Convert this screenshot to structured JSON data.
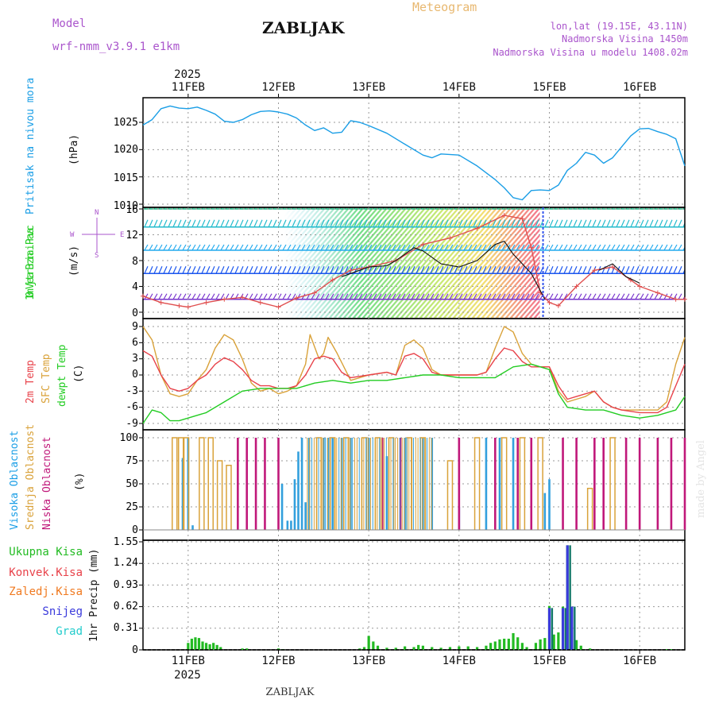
{
  "header": {
    "model_label": "Model",
    "model_name": "wrf-nmm_v3.9.1 e1km",
    "station": "ZABLJAK",
    "meteogram": "Meteogram",
    "lonlat": "lon,lat (19.15E, 43.11N)",
    "elevation": "Nadmorska Visina 1450m",
    "model_elevation": "Nadmorska Visina u modelu 1408.02m",
    "watermark": "made by Angel",
    "footer_station": "ZABLJAK"
  },
  "time_axis": {
    "year": "2025",
    "start_day": 10.5,
    "end_day": 16.5,
    "days": [
      {
        "label": "11FEB",
        "day": 11
      },
      {
        "label": "12FEB",
        "day": 12
      },
      {
        "label": "13FEB",
        "day": 13
      },
      {
        "label": "14FEB",
        "day": 14
      },
      {
        "label": "15FEB",
        "day": 15
      },
      {
        "label": "16FEB",
        "day": 16
      }
    ]
  },
  "colors": {
    "pressure": "#1a9ee6",
    "temp_2m": "#e8424a",
    "temp_sfc": "#d9a23a",
    "dewpoint": "#22cc22",
    "cloud_high": "#33a0dd",
    "cloud_mid": "#d9a23a",
    "cloud_low": "#c0187a",
    "precip_total": "#22bb22",
    "precip_conv": "#e8424a",
    "precip_frz": "#f07a20",
    "precip_snow": "#3a3adc",
    "precip_grad": "#22cccc",
    "wind_gust": "#e05050",
    "wind_speed": "#111111",
    "wind_label": "#aa55cc"
  },
  "chart_data": [
    {
      "type": "line",
      "panel": "pressure",
      "ylabel": "Pritisak na nivou mora",
      "unit": "(hPa)",
      "ylim": [
        1010,
        1029
      ],
      "yticks": [
        1010,
        1015,
        1020,
        1025
      ],
      "grid": true,
      "series": [
        {
          "x": [
            10.5,
            10.6,
            10.7,
            10.8,
            10.9,
            11.0,
            11.1,
            11.2,
            11.3,
            11.4,
            11.5,
            11.6,
            11.7,
            11.8,
            11.9,
            12.0,
            12.1,
            12.2,
            12.3,
            12.4,
            12.5,
            12.6,
            12.7,
            12.8,
            12.9,
            13.0,
            13.2,
            13.4,
            13.6,
            13.7,
            13.8,
            14.0,
            14.2,
            14.4,
            14.5,
            14.6,
            14.7,
            14.8,
            14.9,
            15.0,
            15.1,
            15.2,
            15.3,
            15.4,
            15.5,
            15.6,
            15.7,
            15.8,
            15.9,
            16.0,
            16.1,
            16.2,
            16.3,
            16.4,
            16.5
          ],
          "values": [
            1024.5,
            1025.5,
            1027.5,
            1028.0,
            1027.6,
            1027.5,
            1027.8,
            1027.2,
            1026.5,
            1025.2,
            1025.0,
            1025.5,
            1026.4,
            1027.0,
            1027.1,
            1026.9,
            1026.5,
            1025.8,
            1024.5,
            1023.5,
            1024.0,
            1023.0,
            1023.2,
            1025.3,
            1025.0,
            1024.4,
            1023.0,
            1021.0,
            1019.0,
            1018.5,
            1019.2,
            1019.0,
            1017.0,
            1014.5,
            1013.0,
            1011.2,
            1010.8,
            1012.5,
            1012.6,
            1012.5,
            1013.5,
            1016.2,
            1017.5,
            1019.5,
            1019.0,
            1017.5,
            1018.5,
            1020.5,
            1022.5,
            1023.8,
            1023.9,
            1023.3,
            1022.8,
            1022.0,
            1017.0
          ]
        }
      ]
    },
    {
      "type": "line",
      "panel": "wind",
      "ylabel": "10m Vjetar Brzina i Pravac",
      "unit": "(m/s)",
      "ylim": [
        -1,
        16
      ],
      "yticks": [
        0,
        4,
        8,
        12,
        16
      ],
      "grid": true,
      "direction_legend": [
        "S",
        "W",
        "N",
        "E"
      ],
      "direction_bands": [
        2,
        6,
        9.6,
        13.2,
        16
      ],
      "series": [
        {
          "name": "gust",
          "x": [
            10.5,
            10.7,
            10.9,
            11.0,
            11.2,
            11.4,
            11.6,
            11.8,
            12.0,
            12.2,
            12.4,
            12.6,
            12.8,
            13.0,
            13.3,
            13.6,
            13.9,
            14.2,
            14.5,
            14.7,
            14.8,
            14.9,
            15.0,
            15.1,
            15.3,
            15.5,
            15.7,
            15.9,
            16.0,
            16.2,
            16.4,
            16.5
          ],
          "values": [
            2.5,
            1.5,
            1.0,
            0.8,
            1.5,
            2.0,
            2.3,
            1.5,
            0.8,
            2.2,
            3.0,
            5.0,
            6.5,
            7.0,
            8.0,
            10.5,
            11.5,
            13.0,
            15.0,
            14.5,
            10.0,
            3.0,
            1.5,
            1.0,
            4.0,
            6.5,
            7.0,
            5.0,
            4.0,
            3.0,
            2.0,
            2.0
          ]
        },
        {
          "name": "speed",
          "x": [
            12.7,
            12.9,
            13.0,
            13.2,
            13.3,
            13.5,
            13.6,
            13.8,
            14.0,
            14.2,
            14.4,
            14.5,
            14.6,
            14.8,
            14.95
          ],
          "values": [
            5.5,
            6.5,
            7.0,
            7.2,
            8.0,
            10.0,
            9.5,
            7.5,
            7.0,
            8.0,
            10.5,
            11.0,
            9.0,
            6.0,
            2.0
          ]
        },
        {
          "name": "speed2",
          "x": [
            15.55,
            15.7,
            15.85,
            16.0
          ],
          "values": [
            6.5,
            7.5,
            5.5,
            4.5
          ]
        }
      ]
    },
    {
      "type": "line",
      "panel": "temperature",
      "ylabel": [
        "2m Temp",
        "SFC Temp",
        "dewpt Temp"
      ],
      "unit": "(C)",
      "ylim": [
        -10,
        10
      ],
      "yticks": [
        -9,
        -6,
        -3,
        0,
        3,
        6,
        9
      ],
      "grid": true,
      "series": [
        {
          "name": "2m Temp",
          "x": [
            10.5,
            10.6,
            10.7,
            10.8,
            10.9,
            11.0,
            11.1,
            11.2,
            11.3,
            11.4,
            11.5,
            11.6,
            11.7,
            11.8,
            11.9,
            12.0,
            12.1,
            12.2,
            12.3,
            12.4,
            12.5,
            12.6,
            12.7,
            12.8,
            13.0,
            13.2,
            13.3,
            13.4,
            13.5,
            13.6,
            13.7,
            13.8,
            14.0,
            14.2,
            14.3,
            14.4,
            14.5,
            14.6,
            14.7,
            14.8,
            14.9,
            15.0,
            15.1,
            15.2,
            15.3,
            15.4,
            15.5,
            15.6,
            15.7,
            15.8,
            16.0,
            16.2,
            16.3,
            16.4,
            16.5
          ],
          "values": [
            4.5,
            3.5,
            0.0,
            -2.5,
            -3.0,
            -2.5,
            -1.0,
            0.0,
            2.0,
            3.2,
            2.5,
            1.0,
            -1.0,
            -2.0,
            -2.0,
            -2.5,
            -2.5,
            -2.0,
            0.0,
            3.0,
            3.5,
            3.0,
            0.5,
            -0.5,
            0.0,
            0.5,
            0.0,
            3.5,
            4.0,
            3.0,
            0.5,
            0.0,
            0.0,
            0.0,
            0.5,
            3.0,
            5.0,
            4.5,
            2.5,
            1.5,
            1.5,
            1.5,
            -2.0,
            -4.5,
            -4.0,
            -3.5,
            -3.0,
            -5.0,
            -6.0,
            -6.5,
            -7.0,
            -7.0,
            -6.0,
            -2.0,
            2.0
          ]
        },
        {
          "name": "SFC Temp",
          "x": [
            10.5,
            10.6,
            10.7,
            10.8,
            10.9,
            11.0,
            11.1,
            11.2,
            11.3,
            11.4,
            11.5,
            11.6,
            11.7,
            11.8,
            11.9,
            12.0,
            12.1,
            12.2,
            12.3,
            12.35,
            12.45,
            12.5,
            12.55,
            12.65,
            12.8,
            13.0,
            13.2,
            13.3,
            13.4,
            13.5,
            13.6,
            13.7,
            13.8,
            14.0,
            14.2,
            14.3,
            14.4,
            14.5,
            14.6,
            14.7,
            14.8,
            14.9,
            15.0,
            15.1,
            15.2,
            15.3,
            15.4,
            15.5,
            15.6,
            15.7,
            15.8,
            16.0,
            16.2,
            16.3,
            16.4,
            16.5
          ],
          "values": [
            9.0,
            6.5,
            0.0,
            -3.5,
            -4.0,
            -3.5,
            -1.0,
            1.0,
            5.0,
            7.5,
            6.5,
            3.0,
            -1.5,
            -3.0,
            -2.5,
            -3.5,
            -3.0,
            -2.0,
            2.0,
            7.5,
            3.0,
            4.0,
            7.0,
            4.0,
            -1.0,
            0.0,
            0.5,
            0.0,
            5.5,
            6.5,
            5.0,
            1.0,
            0.0,
            0.0,
            0.0,
            0.5,
            5.0,
            9.0,
            8.0,
            4.0,
            2.0,
            1.5,
            1.5,
            -3.0,
            -5.0,
            -4.5,
            -4.0,
            -3.0,
            -5.0,
            -6.0,
            -6.5,
            -6.5,
            -6.5,
            -5.0,
            2.0,
            7.0
          ]
        },
        {
          "name": "dewpt Temp",
          "x": [
            10.5,
            10.6,
            10.7,
            10.8,
            10.9,
            11.0,
            11.2,
            11.4,
            11.6,
            11.8,
            12.0,
            12.2,
            12.4,
            12.6,
            12.8,
            13.0,
            13.2,
            13.4,
            13.6,
            13.8,
            14.0,
            14.2,
            14.4,
            14.6,
            14.8,
            14.9,
            15.0,
            15.1,
            15.2,
            15.4,
            15.6,
            15.8,
            16.0,
            16.2,
            16.4,
            16.5
          ],
          "values": [
            -9.0,
            -6.5,
            -7.0,
            -8.5,
            -8.5,
            -8.0,
            -7.0,
            -5.0,
            -3.0,
            -2.5,
            -2.5,
            -2.5,
            -1.5,
            -1.0,
            -1.5,
            -1.0,
            -1.0,
            -0.5,
            0.0,
            0.0,
            -0.5,
            -0.5,
            -0.5,
            1.5,
            2.0,
            1.5,
            1.0,
            -3.5,
            -6.0,
            -6.5,
            -6.5,
            -7.5,
            -8.0,
            -7.5,
            -6.5,
            -4.0
          ]
        }
      ]
    },
    {
      "type": "bar",
      "panel": "clouds",
      "ylabel": [
        "Visoka Oblacnost",
        "Srednja Oblacnost",
        "Niska Oblacnost"
      ],
      "unit": "(%)",
      "ylim": [
        0,
        100
      ],
      "yticks": [
        0,
        25,
        50,
        75,
        100
      ],
      "grid": true,
      "series": [
        {
          "name": "Visoka Oblacnost",
          "x": [
            10.94,
            11.0,
            11.05,
            12.04,
            12.1,
            12.14,
            12.18,
            12.22,
            12.26,
            12.3,
            12.34,
            12.5,
            12.55,
            12.6,
            12.7,
            12.8,
            13.0,
            13.2,
            13.4,
            13.6,
            13.7,
            14.0,
            14.3,
            14.45,
            14.6,
            14.95,
            15.0
          ],
          "values": [
            78,
            100,
            5,
            50,
            10,
            10,
            55,
            85,
            100,
            30,
            100,
            100,
            100,
            100,
            100,
            100,
            100,
            80,
            100,
            100,
            100,
            25,
            100,
            100,
            100,
            40,
            55
          ]
        },
        {
          "name": "Srednja Oblacnost",
          "x": [
            10.85,
            10.92,
            10.98,
            11.15,
            11.25,
            11.35,
            11.45,
            12.45,
            12.6,
            12.75,
            12.95,
            13.1,
            13.25,
            13.45,
            13.6,
            13.9,
            14.2,
            14.5,
            14.7,
            14.9,
            15.45,
            15.7
          ],
          "values": [
            100,
            100,
            100,
            100,
            100,
            75,
            70,
            100,
            100,
            100,
            100,
            100,
            100,
            100,
            100,
            75,
            100,
            100,
            100,
            100,
            45,
            100
          ]
        },
        {
          "name": "Niska Oblacnost",
          "x": [
            11.55,
            11.65,
            11.75,
            11.85,
            12.0,
            13.15,
            13.35,
            14.0,
            14.4,
            14.65,
            14.8,
            15.15,
            15.3,
            15.5,
            15.6,
            15.85,
            16.0,
            16.2,
            16.35,
            16.5
          ],
          "values": [
            100,
            100,
            100,
            100,
            100,
            100,
            100,
            100,
            100,
            100,
            100,
            100,
            100,
            100,
            100,
            100,
            100,
            100,
            100,
            100
          ]
        }
      ]
    },
    {
      "type": "bar",
      "panel": "precip",
      "ylabel": "1hr Precip (mm)",
      "legend": [
        "Ukupna Kisa",
        "Konvek.Kisa",
        "Zaledj.Kisa",
        "Snijeg",
        "Grad"
      ],
      "ylim": [
        0,
        1.55
      ],
      "yticks": [
        0,
        0.31,
        0.62,
        0.93,
        1.24,
        1.55
      ],
      "grid": true,
      "series": [
        {
          "name": "Ukupna Kisa",
          "x": [
            11.0,
            11.04,
            11.08,
            11.12,
            11.16,
            11.2,
            11.24,
            11.28,
            11.32,
            11.36,
            11.6,
            11.65,
            12.0,
            12.05,
            12.9,
            12.95,
            13.0,
            13.05,
            13.1,
            13.2,
            13.3,
            13.4,
            13.5,
            13.55,
            13.6,
            13.7,
            13.8,
            13.9,
            14.0,
            14.1,
            14.2,
            14.3,
            14.35,
            14.4,
            14.45,
            14.5,
            14.55,
            14.6,
            14.65,
            14.7,
            14.75,
            14.85,
            14.9,
            14.95,
            15.0,
            15.05,
            15.1,
            15.15,
            15.2,
            15.25,
            15.3,
            15.35,
            15.45,
            16.3,
            16.35
          ],
          "values": [
            0.1,
            0.16,
            0.18,
            0.17,
            0.12,
            0.1,
            0.08,
            0.1,
            0.07,
            0.04,
            0.02,
            0.02,
            0.02,
            0.01,
            0.02,
            0.04,
            0.2,
            0.12,
            0.06,
            0.03,
            0.03,
            0.05,
            0.04,
            0.07,
            0.06,
            0.04,
            0.03,
            0.04,
            0.05,
            0.05,
            0.04,
            0.06,
            0.1,
            0.12,
            0.15,
            0.16,
            0.16,
            0.24,
            0.18,
            0.1,
            0.04,
            0.1,
            0.15,
            0.17,
            0.63,
            0.22,
            0.25,
            0.62,
            1.5,
            0.62,
            0.14,
            0.06,
            0.02,
            0.01,
            0.01
          ]
        },
        {
          "name": "Snijeg",
          "x": [
            15.0,
            15.15,
            15.2,
            15.25
          ],
          "values": [
            0.6,
            0.6,
            1.5,
            0.62
          ]
        }
      ]
    }
  ]
}
